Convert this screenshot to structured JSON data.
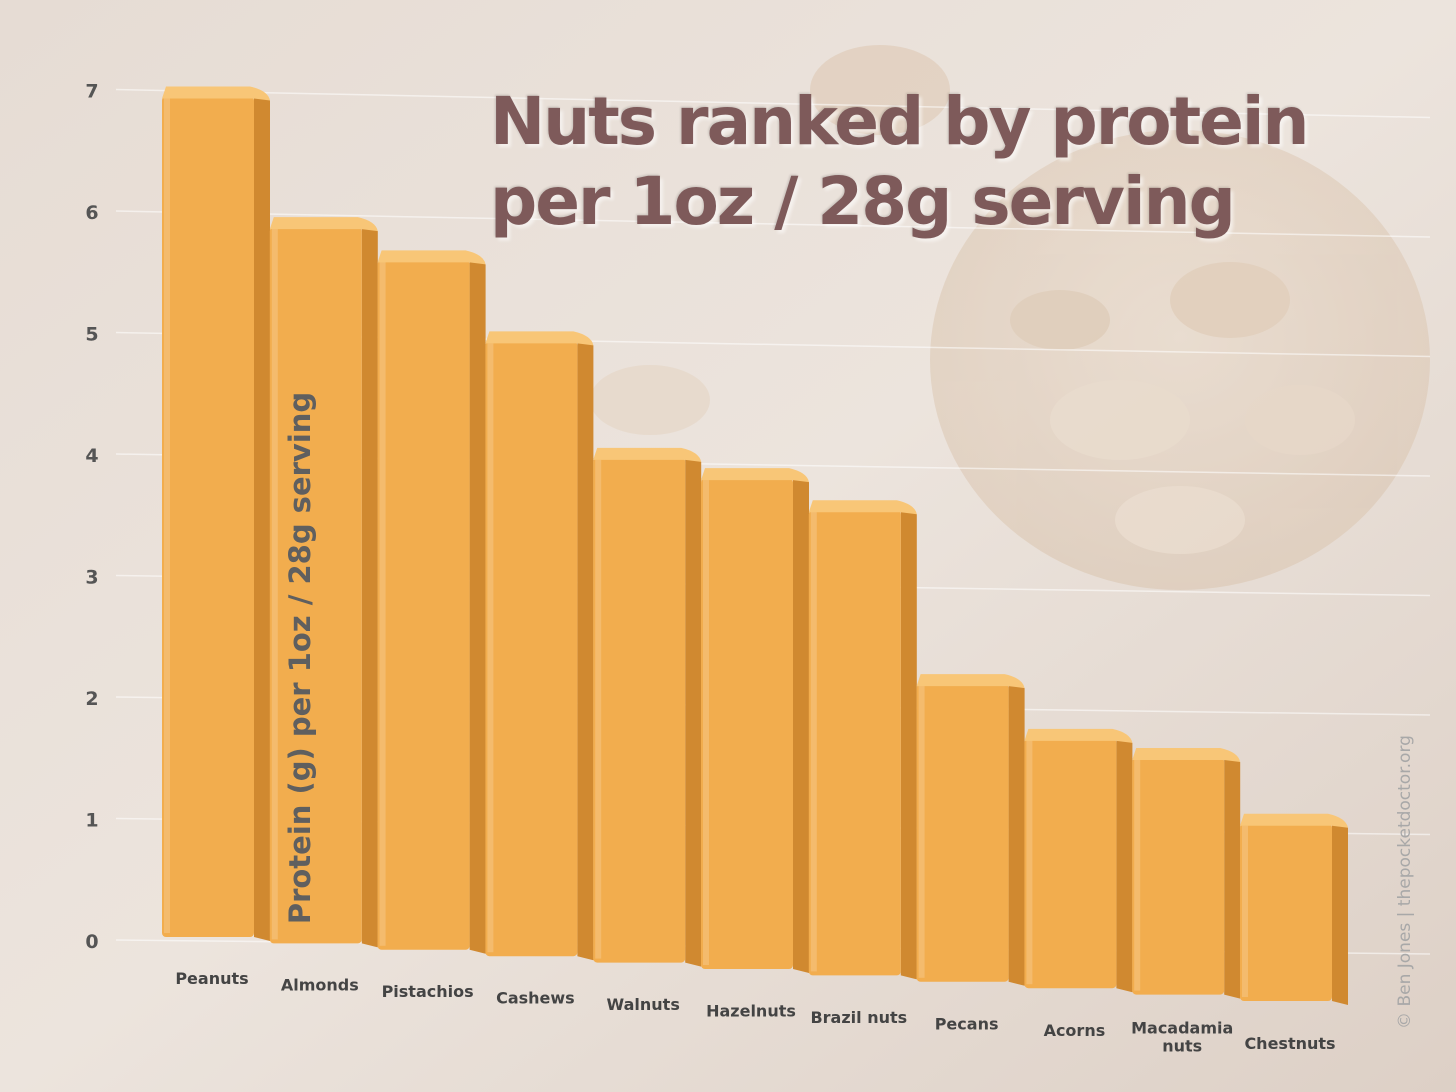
{
  "chart_data": {
    "type": "bar",
    "title_lines": [
      "Nuts ranked by protein",
      "per 1oz / 28g serving"
    ],
    "ylabel": "Protein (g) per 1oz / 28g serving",
    "xlabel": "",
    "ylim": [
      0,
      7
    ],
    "yticks": [
      0,
      1,
      2,
      3,
      4,
      5,
      6,
      7
    ],
    "grid": true,
    "categories": [
      "Peanuts",
      "Almonds",
      "Pistachios",
      "Cashews",
      "Walnuts",
      "Hazelnuts",
      "Brazil nuts",
      "Pecans",
      "Acorns",
      "Macadamia nuts",
      "Chestnuts"
    ],
    "category_lines": [
      [
        "Peanuts"
      ],
      [
        "Almonds"
      ],
      [
        "Pistachios"
      ],
      [
        "Cashews"
      ],
      [
        "Walnuts"
      ],
      [
        "Hazelnuts"
      ],
      [
        "Brazil nuts"
      ],
      [
        "Pecans"
      ],
      [
        "Acorns"
      ],
      [
        "Macadamia",
        "nuts"
      ],
      [
        "Chestnuts"
      ]
    ],
    "values": [
      7.0,
      6.0,
      5.8,
      5.2,
      4.3,
      4.2,
      4.0,
      2.6,
      2.2,
      2.1,
      1.6
    ],
    "colors": {
      "bar_front": "#f2ad4e",
      "bar_side": "#d08930",
      "bar_top": "#f8c677",
      "title": "#7e5a5a"
    }
  },
  "credit": "© Ben Jones | thepocketdoctor.org"
}
